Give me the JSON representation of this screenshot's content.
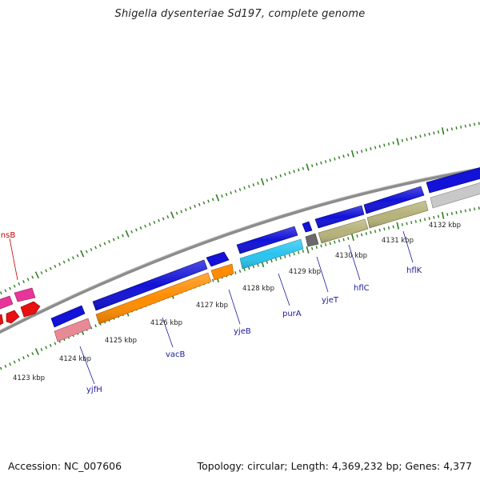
{
  "title": "Shigella dysenteriae Sd197, complete genome",
  "footer": {
    "accession": "Accession: NC_007606",
    "topology": "Topology: circular; Length: 4,369,232 bp; Genes: 4,377"
  },
  "colors": {
    "backbone": "#8c8c8c",
    "tick_major": "#2e7d1e",
    "tick_minor": "#2e7d1e",
    "kbp_label": "#222222",
    "gene_label": "#1a1aa0",
    "gene_label_alt": "#cc0000",
    "callout_line": "#1a1aa0"
  },
  "scale_labels": [
    {
      "text": "4123 kbp"
    },
    {
      "text": "4124 kbp"
    },
    {
      "text": "4125 kbp"
    },
    {
      "text": "4126 kbp"
    },
    {
      "text": "4127 kbp"
    },
    {
      "text": "4128 kbp"
    },
    {
      "text": "4129 kbp"
    },
    {
      "text": "4130 kbp"
    },
    {
      "text": "4131 kbp"
    },
    {
      "text": "4132 kbp"
    }
  ],
  "gene_labels": [
    {
      "text": "insB",
      "color": "red"
    },
    {
      "text": "yjfH",
      "color": "blue"
    },
    {
      "text": "vacB",
      "color": "blue"
    },
    {
      "text": "yjeB",
      "color": "blue"
    },
    {
      "text": "purA",
      "color": "blue"
    },
    {
      "text": "yjeT",
      "color": "blue"
    },
    {
      "text": "hflC",
      "color": "blue"
    },
    {
      "text": "hflK",
      "color": "blue"
    }
  ],
  "features": [
    {
      "name": "feature-magenta-1",
      "color": "#e8359a"
    },
    {
      "name": "feature-magenta-2",
      "color": "#e8359a"
    },
    {
      "name": "feature-red-1",
      "color": "#e81010"
    },
    {
      "name": "feature-red-2",
      "color": "#e81010"
    },
    {
      "name": "feature-red-3",
      "color": "#e81010"
    },
    {
      "name": "gene-blue-yjfH",
      "color": "#1212d8"
    },
    {
      "name": "gene-pink-yjfH",
      "color": "#e88a96"
    },
    {
      "name": "gene-blue-vacB",
      "color": "#1212d8"
    },
    {
      "name": "gene-orange-vacB",
      "color": "#ff8c00"
    },
    {
      "name": "gene-blue-yjeB",
      "color": "#1212d8"
    },
    {
      "name": "gene-orange-yjeB",
      "color": "#ff8c00"
    },
    {
      "name": "gene-blue-purA",
      "color": "#1212d8"
    },
    {
      "name": "gene-cyan-purA",
      "color": "#29c4ef"
    },
    {
      "name": "gene-blue-small-1",
      "color": "#1212d8"
    },
    {
      "name": "gene-gray-yjeT",
      "color": "#6a6a6a"
    },
    {
      "name": "gene-blue-hflC",
      "color": "#1212d8"
    },
    {
      "name": "gene-olive-hflC",
      "color": "#b5b27a"
    },
    {
      "name": "gene-blue-hflK",
      "color": "#1212d8"
    },
    {
      "name": "gene-olive-hflK",
      "color": "#b5b27a"
    },
    {
      "name": "gene-blue-edge",
      "color": "#1212d8"
    },
    {
      "name": "gene-lightgray-edge",
      "color": "#c8c8c8"
    }
  ]
}
